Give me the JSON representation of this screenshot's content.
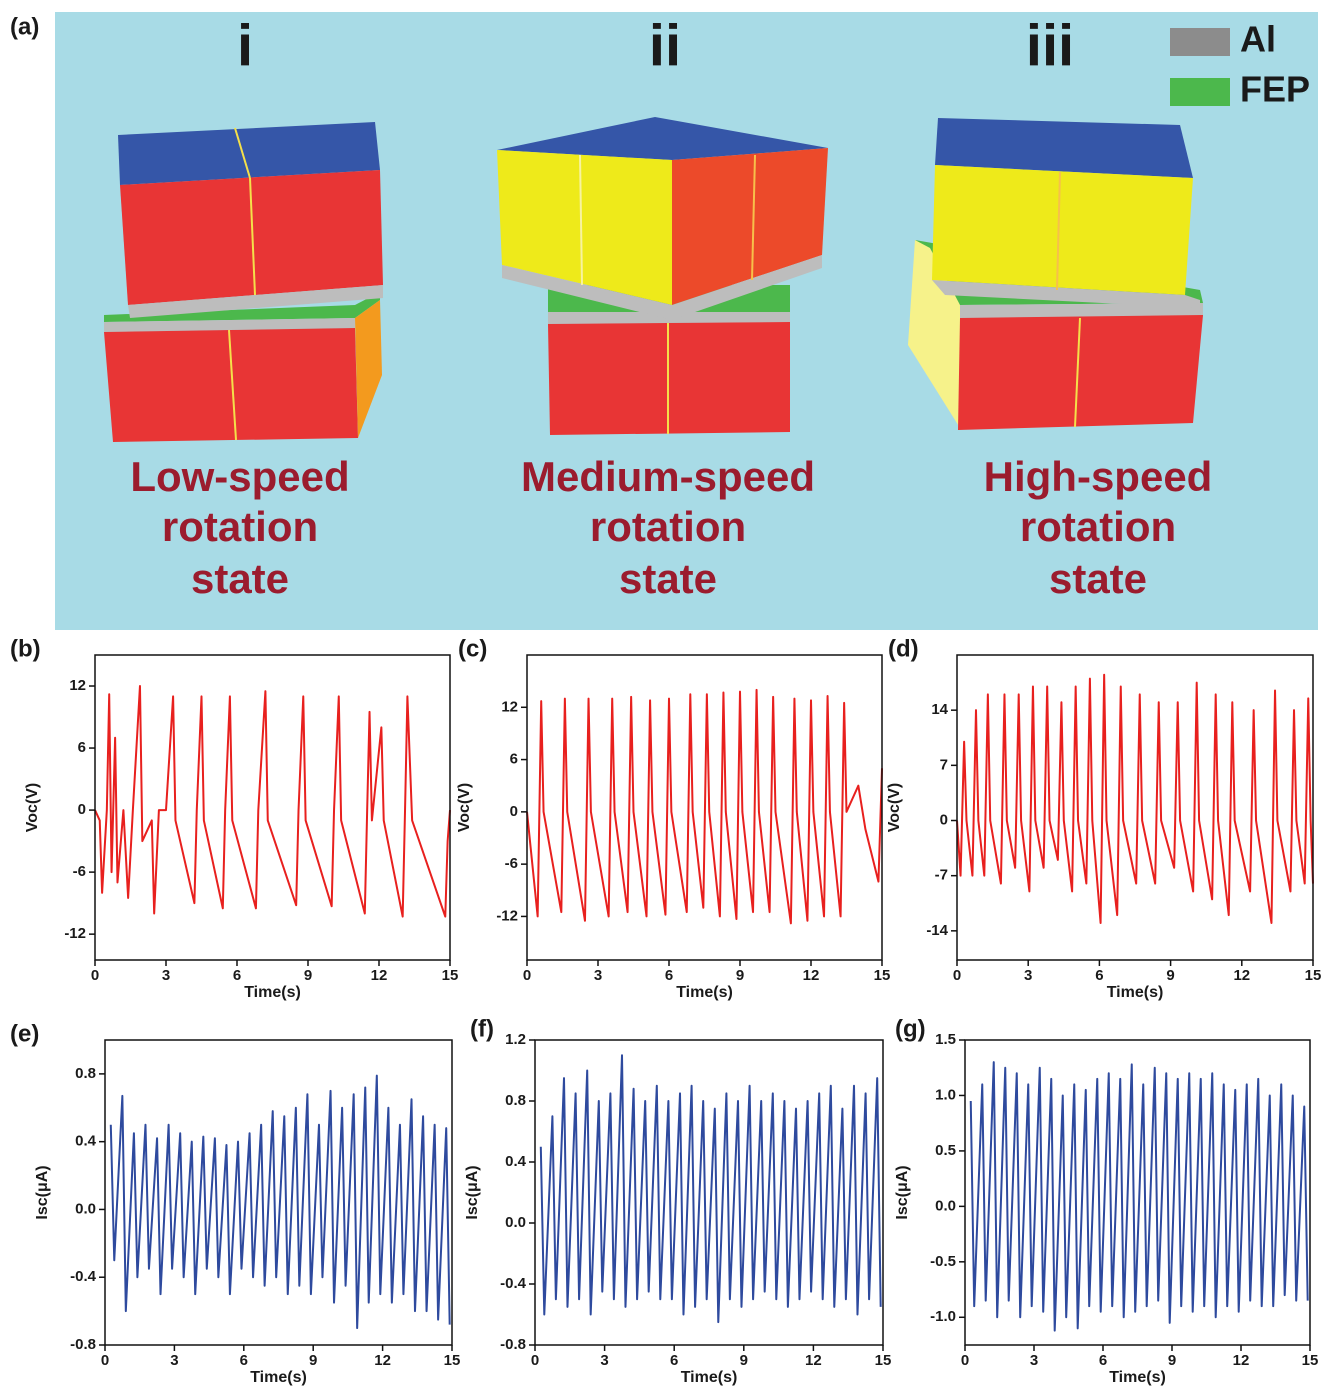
{
  "figure": {
    "label": "(a)",
    "states": [
      {
        "numeral": "i",
        "caption": [
          "Low-speed",
          "rotation",
          "state"
        ]
      },
      {
        "numeral": "ii",
        "caption": [
          "Medium-speed",
          "rotation",
          "state"
        ]
      },
      {
        "numeral": "iii",
        "caption": [
          "High-speed",
          "rotation",
          "state"
        ]
      }
    ],
    "legend": [
      {
        "name": "Al",
        "color": "#8c8c8c"
      },
      {
        "name": "FEP",
        "color": "#4cb84c"
      }
    ]
  },
  "chart_data": [
    {
      "type": "line",
      "label": "(b)",
      "xlabel": "Time(s)",
      "ylabel": "Voc(V)",
      "color": "#e8201e",
      "xlim": [
        0,
        15
      ],
      "xticks": [
        0,
        3,
        6,
        9,
        12,
        15
      ],
      "ylim": [
        -14.5,
        15
      ],
      "yticks": [
        -12,
        -6,
        0,
        6,
        12
      ],
      "x": [
        0,
        0.2,
        0.3,
        0.5,
        0.6,
        0.7,
        0.85,
        0.95,
        1.2,
        1.4,
        1.6,
        1.9,
        2.0,
        2.4,
        2.5,
        2.7,
        3.0,
        3.3,
        3.4,
        4.2,
        4.3,
        4.5,
        4.6,
        5.4,
        5.5,
        5.7,
        5.8,
        6.8,
        6.9,
        7.2,
        7.3,
        8.5,
        8.6,
        8.8,
        8.9,
        10.0,
        10.1,
        10.3,
        10.4,
        11.4,
        11.5,
        11.6,
        11.7,
        12.1,
        12.2,
        13.0,
        13.1,
        13.2,
        13.4,
        14.8,
        14.9,
        15
      ],
      "values": [
        0,
        -1,
        -8,
        0,
        11.2,
        -6,
        7,
        -7,
        0,
        -8.5,
        0,
        12,
        -3,
        -1,
        -10,
        0,
        0,
        11,
        -1,
        -9,
        0,
        11,
        -1,
        -9.5,
        0,
        11,
        -1,
        -9.5,
        0,
        11.5,
        -1,
        -9.2,
        0,
        11,
        -1,
        -9.3,
        0,
        11,
        -1,
        -10,
        0,
        9.5,
        -1,
        8,
        -1,
        -10.3,
        0,
        11,
        -1,
        -10.3,
        -3,
        0
      ]
    },
    {
      "type": "line",
      "label": "(c)",
      "xlabel": "Time(s)",
      "ylabel": "Voc(V)",
      "color": "#e8201e",
      "xlim": [
        0,
        15
      ],
      "xticks": [
        0,
        3,
        6,
        9,
        12,
        15
      ],
      "ylim": [
        -17,
        18
      ],
      "yticks": [
        -12,
        -6,
        0,
        6,
        12
      ],
      "x": [
        0,
        0.45,
        0.6,
        0.7,
        1.45,
        1.6,
        1.7,
        2.45,
        2.6,
        2.7,
        3.45,
        3.6,
        3.7,
        4.25,
        4.4,
        4.5,
        5.05,
        5.2,
        5.3,
        5.85,
        6.0,
        6.1,
        6.75,
        6.9,
        7.0,
        7.45,
        7.6,
        7.7,
        8.15,
        8.3,
        8.4,
        8.85,
        9.0,
        9.1,
        9.55,
        9.7,
        9.8,
        10.25,
        10.4,
        10.5,
        11.15,
        11.3,
        11.4,
        11.85,
        12.0,
        12.1,
        12.55,
        12.7,
        12.8,
        13.25,
        13.4,
        13.5,
        14.0,
        14.3,
        14.85,
        15
      ],
      "values": [
        0,
        -12,
        12.7,
        0,
        -11.5,
        13,
        0,
        -12.5,
        13,
        0,
        -12,
        13,
        0,
        -11.5,
        13.2,
        0,
        -12,
        12.8,
        0,
        -11.8,
        13,
        0,
        -11.5,
        13.5,
        0,
        -11,
        13.5,
        0,
        -12,
        13.7,
        0,
        -12.3,
        13.8,
        0,
        -11.5,
        14,
        0,
        -11.5,
        13.2,
        0,
        -12.8,
        13,
        0,
        -12.5,
        12.8,
        0,
        -12,
        13.3,
        0,
        -12,
        12.5,
        0,
        3,
        -2,
        -8,
        5
      ]
    },
    {
      "type": "line",
      "label": "(d)",
      "xlabel": "Time(s)",
      "ylabel": "Voc(V)",
      "color": "#e8201e",
      "xlim": [
        0,
        15
      ],
      "xticks": [
        0,
        3,
        6,
        9,
        12,
        15
      ],
      "ylim": [
        -17.7,
        21
      ],
      "yticks": [
        -14,
        -7,
        0,
        7,
        14
      ],
      "x": [
        0,
        0.15,
        0.3,
        0.4,
        0.65,
        0.8,
        0.9,
        1.15,
        1.3,
        1.4,
        1.85,
        2.0,
        2.1,
        2.45,
        2.6,
        2.7,
        3.05,
        3.2,
        3.3,
        3.65,
        3.8,
        3.9,
        4.25,
        4.4,
        4.5,
        4.85,
        5.0,
        5.1,
        5.45,
        5.6,
        5.7,
        6.05,
        6.2,
        6.3,
        6.75,
        6.9,
        7.0,
        7.55,
        7.7,
        7.8,
        8.35,
        8.5,
        8.6,
        9.15,
        9.3,
        9.4,
        9.95,
        10.1,
        10.2,
        10.75,
        10.9,
        11.0,
        11.45,
        11.6,
        11.7,
        12.35,
        12.5,
        12.6,
        13.25,
        13.4,
        13.5,
        14.05,
        14.2,
        14.3,
        14.65,
        14.8,
        14.9,
        15
      ],
      "values": [
        0,
        -7,
        10,
        0,
        -7,
        14,
        0,
        -7,
        16,
        0,
        -8,
        16,
        0,
        -6,
        16,
        0,
        -9,
        17,
        0,
        -6,
        17,
        0,
        -5,
        15,
        0,
        -9,
        17,
        0,
        -8,
        18,
        0,
        -13,
        18.5,
        0,
        -12,
        17,
        0,
        -8,
        16,
        0,
        -8,
        15,
        0,
        -6,
        15,
        0,
        -9,
        17.5,
        0,
        -10,
        16,
        0,
        -12,
        15,
        0,
        -9,
        14,
        0,
        -13,
        16.5,
        0,
        -9,
        14,
        0,
        -8,
        15.5,
        0,
        -8
      ]
    },
    {
      "type": "line",
      "label": "(e)",
      "xlabel": "Time(s)",
      "ylabel": "Isc(μA)",
      "color": "#2e4a9e",
      "xlim": [
        0,
        15
      ],
      "xticks": [
        0,
        3,
        6,
        9,
        12,
        15
      ],
      "ylim": [
        -0.8,
        1.0
      ],
      "yticks": [
        -0.8,
        -0.4,
        {
          "value": 0,
          "label": "0.0"
        },
        0.4,
        0.8
      ],
      "x": [
        0.25,
        0.4,
        0.75,
        0.9,
        1.25,
        1.4,
        1.75,
        1.9,
        2.25,
        2.4,
        2.75,
        2.9,
        3.25,
        3.4,
        3.75,
        3.9,
        4.25,
        4.4,
        4.75,
        4.9,
        5.25,
        5.4,
        5.75,
        5.9,
        6.25,
        6.4,
        6.75,
        6.9,
        7.25,
        7.4,
        7.75,
        7.9,
        8.25,
        8.4,
        8.75,
        8.9,
        9.25,
        9.4,
        9.75,
        9.9,
        10.25,
        10.4,
        10.75,
        10.9,
        11.25,
        11.4,
        11.75,
        11.9,
        12.25,
        12.4,
        12.75,
        12.9,
        13.25,
        13.4,
        13.75,
        13.9,
        14.25,
        14.4,
        14.75,
        14.9
      ],
      "values": [
        0.5,
        -0.3,
        0.67,
        -0.6,
        0.45,
        -0.4,
        0.5,
        -0.35,
        0.42,
        -0.5,
        0.5,
        -0.35,
        0.45,
        -0.4,
        0.4,
        -0.5,
        0.43,
        -0.35,
        0.42,
        -0.4,
        0.38,
        -0.5,
        0.4,
        -0.35,
        0.45,
        -0.4,
        0.5,
        -0.45,
        0.58,
        -0.4,
        0.55,
        -0.5,
        0.6,
        -0.45,
        0.68,
        -0.5,
        0.5,
        -0.4,
        0.7,
        -0.55,
        0.6,
        -0.45,
        0.68,
        -0.7,
        0.72,
        -0.55,
        0.79,
        -0.5,
        0.6,
        -0.55,
        0.5,
        -0.5,
        0.65,
        -0.6,
        0.55,
        -0.6,
        0.5,
        -0.65,
        0.48,
        -0.68
      ]
    },
    {
      "type": "line",
      "label": "(f)",
      "xlabel": "Time(s)",
      "ylabel": "Isc(μA)",
      "color": "#2e4a9e",
      "xlim": [
        0,
        15
      ],
      "xticks": [
        0,
        3,
        6,
        9,
        12,
        15
      ],
      "ylim": [
        -0.8,
        1.2
      ],
      "yticks": [
        -0.8,
        -0.4,
        {
          "value": 0,
          "label": "0.0"
        },
        0.4,
        0.8,
        1.2
      ],
      "x": [
        0.25,
        0.4,
        0.75,
        0.9,
        1.25,
        1.4,
        1.75,
        1.9,
        2.25,
        2.4,
        2.75,
        2.9,
        3.25,
        3.4,
        3.75,
        3.9,
        4.25,
        4.4,
        4.75,
        4.9,
        5.25,
        5.4,
        5.75,
        5.9,
        6.25,
        6.4,
        6.75,
        6.9,
        7.25,
        7.4,
        7.75,
        7.9,
        8.25,
        8.4,
        8.75,
        8.9,
        9.25,
        9.4,
        9.75,
        9.9,
        10.25,
        10.4,
        10.75,
        10.9,
        11.25,
        11.4,
        11.75,
        11.9,
        12.25,
        12.4,
        12.75,
        12.9,
        13.25,
        13.4,
        13.75,
        13.9,
        14.25,
        14.4,
        14.75,
        14.9
      ],
      "values": [
        0.5,
        -0.6,
        0.7,
        -0.5,
        0.95,
        -0.55,
        0.85,
        -0.5,
        1.0,
        -0.6,
        0.8,
        -0.45,
        0.85,
        -0.5,
        1.1,
        -0.55,
        0.88,
        -0.5,
        0.8,
        -0.45,
        0.9,
        -0.5,
        0.8,
        -0.5,
        0.85,
        -0.6,
        0.9,
        -0.55,
        0.8,
        -0.5,
        0.75,
        -0.65,
        0.85,
        -0.5,
        0.8,
        -0.55,
        0.9,
        -0.5,
        0.8,
        -0.45,
        0.85,
        -0.5,
        0.8,
        -0.55,
        0.75,
        -0.5,
        0.8,
        -0.45,
        0.85,
        -0.5,
        0.9,
        -0.55,
        0.75,
        -0.5,
        0.9,
        -0.6,
        0.85,
        -0.5,
        0.95,
        -0.55
      ]
    },
    {
      "type": "line",
      "label": "(g)",
      "xlabel": "Time(s)",
      "ylabel": "Isc(μA)",
      "color": "#2e4a9e",
      "xlim": [
        0,
        15
      ],
      "xticks": [
        0,
        3,
        6,
        9,
        12,
        15
      ],
      "ylim": [
        -1.25,
        1.5
      ],
      "yticks": [
        {
          "value": -1,
          "label": "-1.0"
        },
        -0.5,
        {
          "value": 0,
          "label": "0.0"
        },
        0.5,
        {
          "value": 1,
          "label": "1.0"
        },
        1.5
      ],
      "x": [
        0.25,
        0.4,
        0.75,
        0.9,
        1.25,
        1.4,
        1.75,
        1.9,
        2.25,
        2.4,
        2.75,
        2.9,
        3.25,
        3.4,
        3.75,
        3.9,
        4.25,
        4.4,
        4.75,
        4.9,
        5.25,
        5.4,
        5.75,
        5.9,
        6.25,
        6.4,
        6.75,
        6.9,
        7.25,
        7.4,
        7.75,
        7.9,
        8.25,
        8.4,
        8.75,
        8.9,
        9.25,
        9.4,
        9.75,
        9.9,
        10.25,
        10.4,
        10.75,
        10.9,
        11.25,
        11.4,
        11.75,
        11.9,
        12.25,
        12.4,
        12.75,
        12.9,
        13.25,
        13.4,
        13.75,
        13.9,
        14.25,
        14.4,
        14.75,
        14.9
      ],
      "values": [
        0.95,
        -0.9,
        1.1,
        -0.85,
        1.3,
        -1.0,
        1.25,
        -0.85,
        1.2,
        -1.0,
        1.1,
        -0.9,
        1.25,
        -0.95,
        1.15,
        -1.12,
        1.0,
        -1.0,
        1.1,
        -1.1,
        1.05,
        -0.9,
        1.15,
        -0.95,
        1.2,
        -0.9,
        1.15,
        -1.0,
        1.28,
        -0.95,
        1.1,
        -0.9,
        1.25,
        -0.85,
        1.2,
        -1.05,
        1.15,
        -0.9,
        1.2,
        -0.95,
        1.15,
        -0.9,
        1.2,
        -1.0,
        1.1,
        -0.9,
        1.05,
        -0.95,
        1.1,
        -0.85,
        1.15,
        -0.9,
        1.0,
        -0.9,
        1.1,
        -0.8,
        1.0,
        -0.85,
        0.9,
        -0.85
      ]
    }
  ]
}
